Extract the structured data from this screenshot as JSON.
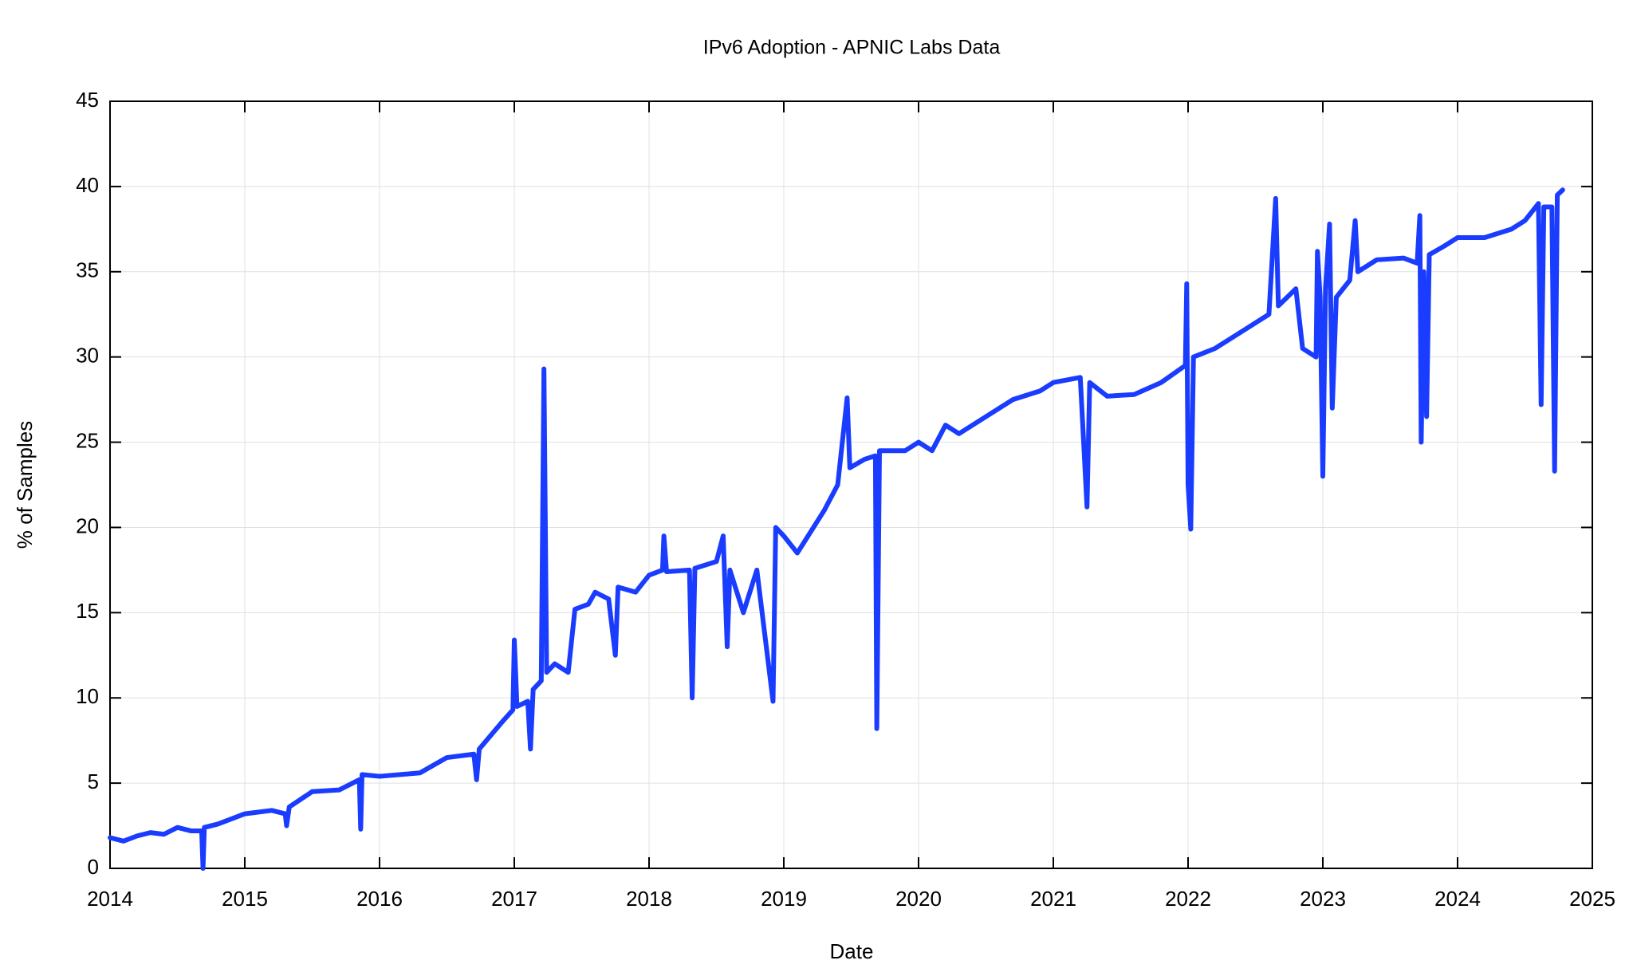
{
  "chart_data": {
    "type": "line",
    "title": "IPv6 Adoption - APNIC Labs Data",
    "x_label": "Date",
    "y_label": "% of Samples",
    "xlim": [
      2014,
      2025
    ],
    "xticks": [
      2014,
      2015,
      2016,
      2017,
      2018,
      2019,
      2020,
      2021,
      2022,
      2023,
      2024,
      2025
    ],
    "ylim": [
      0,
      45
    ],
    "yticks": [
      0,
      5,
      10,
      15,
      20,
      25,
      30,
      35,
      40,
      45
    ],
    "grid": true,
    "x": [
      2014.0,
      2014.1,
      2014.2,
      2014.3,
      2014.4,
      2014.5,
      2014.6,
      2014.68,
      2014.69,
      2014.7,
      2014.8,
      2015.0,
      2015.2,
      2015.3,
      2015.31,
      2015.33,
      2015.5,
      2015.7,
      2015.85,
      2015.86,
      2015.87,
      2016.0,
      2016.3,
      2016.5,
      2016.7,
      2016.72,
      2016.74,
      2016.9,
      2016.99,
      2017.0,
      2017.02,
      2017.1,
      2017.12,
      2017.14,
      2017.2,
      2017.22,
      2017.24,
      2017.3,
      2017.4,
      2017.45,
      2017.55,
      2017.6,
      2017.7,
      2017.75,
      2017.77,
      2017.9,
      2018.0,
      2018.1,
      2018.11,
      2018.13,
      2018.3,
      2018.32,
      2018.34,
      2018.5,
      2018.55,
      2018.58,
      2018.6,
      2018.7,
      2018.8,
      2018.92,
      2018.94,
      2019.0,
      2019.1,
      2019.3,
      2019.4,
      2019.47,
      2019.49,
      2019.6,
      2019.68,
      2019.69,
      2019.71,
      2019.9,
      2020.0,
      2020.1,
      2020.2,
      2020.3,
      2020.5,
      2020.7,
      2020.9,
      2021.0,
      2021.2,
      2021.25,
      2021.27,
      2021.4,
      2021.6,
      2021.8,
      2021.98,
      2021.99,
      2022.0,
      2022.02,
      2022.04,
      2022.2,
      2022.4,
      2022.6,
      2022.65,
      2022.67,
      2022.8,
      2022.85,
      2022.95,
      2022.96,
      2022.98,
      2023.0,
      2023.02,
      2023.05,
      2023.07,
      2023.1,
      2023.2,
      2023.24,
      2023.26,
      2023.4,
      2023.6,
      2023.7,
      2023.72,
      2023.73,
      2023.75,
      2023.77,
      2023.79,
      2023.9,
      2024.0,
      2024.2,
      2024.4,
      2024.5,
      2024.6,
      2024.62,
      2024.64,
      2024.7,
      2024.72,
      2024.74,
      2024.78
    ],
    "series": [
      {
        "color": "#1a3cff",
        "values": [
          1.8,
          1.6,
          1.9,
          2.1,
          2.0,
          2.4,
          2.2,
          2.2,
          0,
          2.4,
          2.6,
          3.2,
          3.4,
          3.2,
          2.5,
          3.6,
          4.5,
          4.6,
          5.2,
          2.3,
          5.5,
          5.4,
          5.6,
          6.5,
          6.7,
          5.2,
          7.0,
          8.5,
          9.3,
          13.4,
          9.5,
          9.8,
          7.0,
          10.5,
          11.0,
          29.3,
          11.5,
          12,
          11.5,
          15.2,
          15.5,
          16.2,
          15.8,
          12.5,
          16.5,
          16.2,
          17.2,
          17.5,
          19.5,
          17.4,
          17.5,
          10,
          17.6,
          18.0,
          19.5,
          13,
          17.5,
          15,
          17.5,
          9.8,
          20,
          19.5,
          18.5,
          21,
          22.5,
          27.6,
          23.5,
          24,
          24.2,
          8.2,
          24.5,
          24.5,
          25,
          24.5,
          26,
          25.5,
          26.5,
          27.5,
          28,
          28.5,
          28.8,
          21.2,
          28.5,
          27.7,
          27.8,
          28.5,
          29.5,
          34.3,
          22.5,
          19.9,
          30,
          30.5,
          31.5,
          32.5,
          39.3,
          33,
          34,
          30.5,
          30,
          36.2,
          33.5,
          23,
          34,
          37.8,
          27,
          33.5,
          34.5,
          38,
          35,
          35.7,
          35.8,
          35.5,
          38.3,
          25,
          35,
          26.5,
          36,
          36.5,
          37,
          37,
          37.5,
          38,
          39,
          27.2,
          38.8,
          38.8,
          23.3,
          39.5,
          39.8
        ]
      }
    ]
  }
}
